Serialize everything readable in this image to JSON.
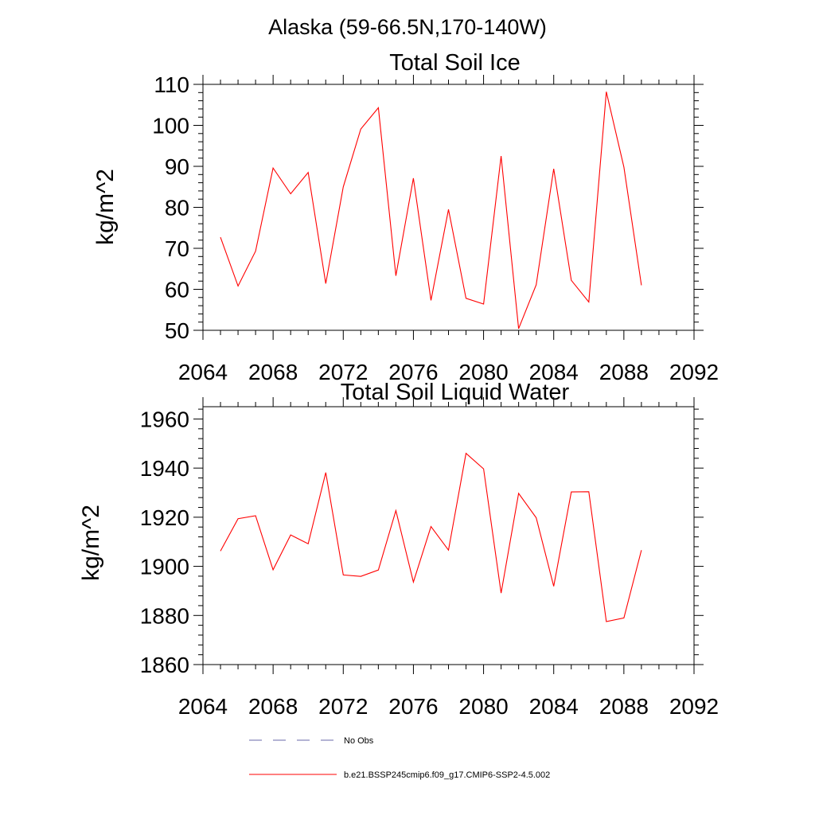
{
  "figure_title": "Alaska (59-66.5N,170-140W)",
  "chart_data": [
    {
      "type": "line",
      "title": "Total Soil Ice",
      "xlabel": "",
      "ylabel": "kg/m^2",
      "xlim": [
        2064,
        2092
      ],
      "ylim": [
        50,
        110
      ],
      "xticks": [
        2064,
        2068,
        2072,
        2076,
        2080,
        2084,
        2088,
        2092
      ],
      "yticks": [
        50,
        60,
        70,
        80,
        90,
        100,
        110
      ],
      "grid": false,
      "series": [
        {
          "name": "b.e21.BSSP245cmip6.f09_g17.CMIP6-SSP2-4.5.002",
          "color": "#ff0000",
          "x": [
            2065,
            2066,
            2067,
            2068,
            2069,
            2070,
            2071,
            2072,
            2073,
            2074,
            2075,
            2076,
            2077,
            2078,
            2079,
            2080,
            2081,
            2082,
            2083,
            2084,
            2085,
            2086,
            2087,
            2088,
            2089
          ],
          "y": [
            72.7,
            60.8,
            69.3,
            89.6,
            83.3,
            88.5,
            61.4,
            85.0,
            99.1,
            104.3,
            63.3,
            87.1,
            57.3,
            79.5,
            57.8,
            56.4,
            92.5,
            50.4,
            61.1,
            89.4,
            62.2,
            56.9,
            108.2,
            89.8,
            61.0
          ]
        }
      ]
    },
    {
      "type": "line",
      "title": "Total Soil Liquid Water",
      "xlabel": "",
      "ylabel": "kg/m^2",
      "xlim": [
        2064,
        2092
      ],
      "ylim": [
        1860,
        1965
      ],
      "xticks": [
        2064,
        2068,
        2072,
        2076,
        2080,
        2084,
        2088,
        2092
      ],
      "yticks": [
        1860,
        1880,
        1900,
        1920,
        1940,
        1960
      ],
      "grid": false,
      "series": [
        {
          "name": "b.e21.BSSP245cmip6.f09_g17.CMIP6-SSP2-4.5.002",
          "color": "#ff0000",
          "x": [
            2065,
            2066,
            2067,
            2068,
            2069,
            2070,
            2071,
            2072,
            2073,
            2074,
            2075,
            2076,
            2077,
            2078,
            2079,
            2080,
            2081,
            2082,
            2083,
            2084,
            2085,
            2086,
            2087,
            2088,
            2089
          ],
          "y": [
            1906.2,
            1919.4,
            1920.6,
            1898.6,
            1912.8,
            1909.2,
            1938.2,
            1896.5,
            1895.9,
            1898.5,
            1922.7,
            1893.6,
            1916.2,
            1906.6,
            1946.0,
            1939.7,
            1889.1,
            1929.7,
            1919.8,
            1891.9,
            1930.3,
            1930.4,
            1877.5,
            1879.0,
            1906.6
          ]
        }
      ]
    }
  ],
  "legend": {
    "placement": "bottom",
    "items": [
      {
        "label": "No Obs",
        "color": "#6a6aa8",
        "style": "dashed"
      },
      {
        "label": "b.e21.BSSP245cmip6.f09_g17.CMIP6-SSP2-4.5.002",
        "color": "#ff0000",
        "style": "solid"
      }
    ]
  }
}
